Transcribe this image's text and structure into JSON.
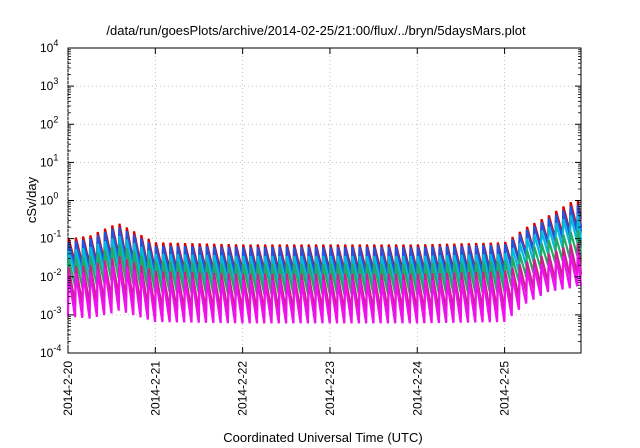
{
  "chart_data": {
    "type": "line",
    "title": "/data/run/goesPlots/archive/2014-02-25/21:00/flux/../bryn/5daysMars.plot",
    "xlabel": "Coordinated Universal Time (UTC)",
    "ylabel": "cSv/day",
    "yscale": "log",
    "ylim": [
      0.0001,
      10000
    ],
    "y_ticks": [
      {
        "base": "10",
        "exp": "-4",
        "value": 0.0001
      },
      {
        "base": "10",
        "exp": "-3",
        "value": 0.001
      },
      {
        "base": "10",
        "exp": "-2",
        "value": 0.01
      },
      {
        "base": "10",
        "exp": "-1",
        "value": 0.1
      },
      {
        "base": "10",
        "exp": "0",
        "value": 1
      },
      {
        "base": "10",
        "exp": "1",
        "value": 10
      },
      {
        "base": "10",
        "exp": "2",
        "value": 100
      },
      {
        "base": "10",
        "exp": "3",
        "value": 1000
      },
      {
        "base": "10",
        "exp": "4",
        "value": 10000
      }
    ],
    "xlim": [
      "2014-02-20 00:00",
      "2014-02-25 21:00"
    ],
    "x_ticks": [
      "2014-2-20",
      "2014-2-21",
      "2014-2-22",
      "2014-2-23",
      "2014-2-24",
      "2014-2-25"
    ],
    "grid": true,
    "sawtooth_period_hours": 2,
    "series": [
      {
        "color": "#dd0000",
        "x_hours": [
          0,
          6,
          12,
          14,
          24,
          48,
          96,
          120,
          126,
          132,
          138,
          141
        ],
        "peak": [
          0.1,
          0.12,
          0.22,
          0.25,
          0.08,
          0.07,
          0.07,
          0.08,
          0.2,
          0.4,
          0.9,
          1.0
        ],
        "trough": [
          0.025,
          0.02,
          0.03,
          0.035,
          0.015,
          0.014,
          0.014,
          0.015,
          0.04,
          0.08,
          0.15,
          0.2
        ]
      },
      {
        "color": "#2255dd",
        "x_hours": [
          0,
          6,
          12,
          14,
          24,
          48,
          96,
          120,
          126,
          132,
          138,
          141
        ],
        "peak": [
          0.08,
          0.1,
          0.18,
          0.2,
          0.065,
          0.06,
          0.06,
          0.07,
          0.17,
          0.33,
          0.7,
          0.8
        ],
        "trough": [
          0.02,
          0.016,
          0.025,
          0.03,
          0.012,
          0.011,
          0.011,
          0.012,
          0.035,
          0.07,
          0.12,
          0.16
        ]
      },
      {
        "color": "#00bbdd",
        "x_hours": [
          0,
          6,
          12,
          14,
          24,
          48,
          96,
          120,
          126,
          132,
          138,
          141
        ],
        "peak": [
          0.05,
          0.06,
          0.1,
          0.12,
          0.04,
          0.035,
          0.035,
          0.04,
          0.1,
          0.2,
          0.4,
          0.45
        ],
        "trough": [
          0.012,
          0.01,
          0.015,
          0.018,
          0.007,
          0.006,
          0.006,
          0.007,
          0.02,
          0.04,
          0.07,
          0.09
        ]
      },
      {
        "color": "#22aa66",
        "x_hours": [
          0,
          6,
          12,
          14,
          24,
          48,
          96,
          120,
          126,
          132,
          138,
          141
        ],
        "peak": [
          0.03,
          0.035,
          0.06,
          0.07,
          0.025,
          0.022,
          0.022,
          0.025,
          0.05,
          0.09,
          0.15,
          0.18
        ],
        "trough": [
          0.006,
          0.005,
          0.008,
          0.009,
          0.004,
          0.0035,
          0.0035,
          0.004,
          0.01,
          0.02,
          0.03,
          0.04
        ]
      },
      {
        "color": "#cc2288",
        "x_hours": [
          0,
          6,
          12,
          14,
          24,
          48,
          96,
          120,
          126,
          132,
          138,
          141
        ],
        "peak": [
          0.018,
          0.02,
          0.03,
          0.035,
          0.014,
          0.012,
          0.012,
          0.014,
          0.025,
          0.04,
          0.07,
          0.08
        ],
        "trough": [
          0.002,
          0.0018,
          0.0025,
          0.003,
          0.0013,
          0.0012,
          0.0012,
          0.0013,
          0.004,
          0.007,
          0.01,
          0.012
        ]
      },
      {
        "color": "#ee11ee",
        "x_hours": [
          0,
          6,
          12,
          14,
          24,
          48,
          96,
          120,
          126,
          132,
          138,
          141
        ],
        "peak": [
          0.012,
          0.013,
          0.02,
          0.022,
          0.009,
          0.008,
          0.008,
          0.009,
          0.015,
          0.025,
          0.04,
          0.05
        ],
        "trough": [
          0.0009,
          0.0008,
          0.0011,
          0.0013,
          0.00065,
          0.0006,
          0.0006,
          0.00065,
          0.002,
          0.004,
          0.005,
          0.006
        ]
      }
    ]
  }
}
